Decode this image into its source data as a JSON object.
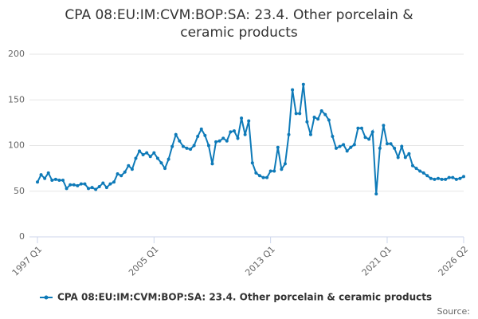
{
  "chart_data": {
    "type": "line",
    "title": "CPA 08:EU:IM:CVM:BOP:SA: 23.4. Other porcelain & ceramic products",
    "categories": [
      "1997 Q1",
      null,
      null,
      null,
      null,
      null,
      null,
      null,
      null,
      null,
      null,
      null,
      null,
      null,
      null,
      null,
      null,
      null,
      null,
      null,
      null,
      null,
      null,
      null,
      null,
      null,
      null,
      null,
      null,
      null,
      null,
      null,
      "2005 Q1",
      null,
      null,
      null,
      null,
      null,
      null,
      null,
      null,
      null,
      null,
      null,
      null,
      null,
      null,
      null,
      null,
      null,
      null,
      null,
      null,
      null,
      null,
      null,
      null,
      null,
      null,
      null,
      null,
      null,
      null,
      null,
      "2013 Q1",
      null,
      null,
      null,
      null,
      null,
      null,
      null,
      null,
      null,
      null,
      null,
      null,
      null,
      null,
      null,
      null,
      null,
      null,
      null,
      null,
      null,
      null,
      null,
      null,
      null,
      null,
      null,
      null,
      null,
      null,
      null,
      "2021 Q1",
      null,
      null,
      null,
      null,
      null,
      null,
      null,
      null,
      null,
      null,
      null,
      null,
      null,
      null,
      null,
      null,
      null,
      null,
      null,
      null,
      "2026 Q2"
    ],
    "series": [
      {
        "name": "CPA 08:EU:IM:CVM:BOP:SA: 23.4. Other porcelain & ceramic products",
        "color": "#0e7ab8",
        "values": [
          60,
          68,
          64,
          70,
          62,
          63,
          62,
          62,
          53,
          57,
          57,
          56,
          58,
          58,
          53,
          54,
          52,
          55,
          59,
          54,
          58,
          60,
          69,
          67,
          71,
          78,
          74,
          86,
          94,
          90,
          92,
          88,
          92,
          86,
          81,
          75,
          85,
          99,
          112,
          105,
          99,
          97,
          96,
          100,
          110,
          118,
          111,
          100,
          80,
          104,
          105,
          108,
          105,
          115,
          116,
          108,
          130,
          112,
          127,
          81,
          70,
          67,
          65,
          65,
          72,
          72,
          98,
          74,
          80,
          112,
          161,
          135,
          135,
          167,
          126,
          112,
          131,
          129,
          138,
          134,
          128,
          110,
          97,
          99,
          101,
          94,
          98,
          101,
          119,
          119,
          109,
          107,
          115,
          47,
          97,
          122,
          102,
          102,
          97,
          87,
          99,
          87,
          91,
          78,
          75,
          72,
          70,
          67,
          64,
          63,
          64,
          63,
          63,
          65,
          65,
          63,
          64,
          66
        ]
      }
    ],
    "ylim": [
      0,
      200
    ],
    "yticks": [
      0,
      50,
      100,
      150,
      200
    ],
    "grid": true,
    "source": "Source:"
  }
}
